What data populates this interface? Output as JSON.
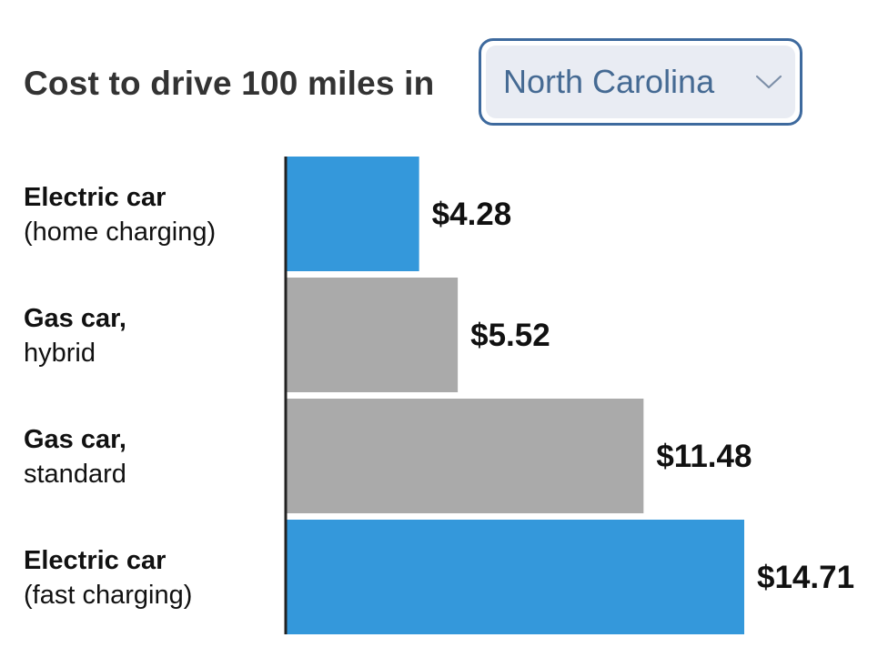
{
  "header": {
    "title": "Cost to drive 100 miles in",
    "state_selector": {
      "selected": "North Carolina",
      "icon": "chevron-down-icon"
    }
  },
  "colors": {
    "electric": "#3498db",
    "gas": "#aaaaaa",
    "axis": "#222222"
  },
  "chart_data": {
    "type": "bar",
    "orientation": "horizontal",
    "categories": [
      "Electric car (home charging)",
      "Gas car, hybrid",
      "Gas car, standard",
      "Electric car (fast charging)"
    ],
    "category_labels": [
      {
        "main": "Electric car",
        "sub": "(home charging)"
      },
      {
        "main": "Gas car,",
        "sub": "hybrid"
      },
      {
        "main": "Gas car,",
        "sub": "standard"
      },
      {
        "main": "Electric car",
        "sub": "(fast charging)"
      }
    ],
    "values": [
      4.28,
      5.52,
      11.48,
      14.71
    ],
    "value_labels": [
      "$4.28",
      "$5.52",
      "$11.48",
      "$14.71"
    ],
    "bar_colors": [
      "#3498db",
      "#aaaaaa",
      "#aaaaaa",
      "#3498db"
    ],
    "xlim": [
      0,
      14.71
    ],
    "grid": false,
    "title": "Cost to drive 100 miles in",
    "xlabel": "",
    "ylabel": ""
  }
}
